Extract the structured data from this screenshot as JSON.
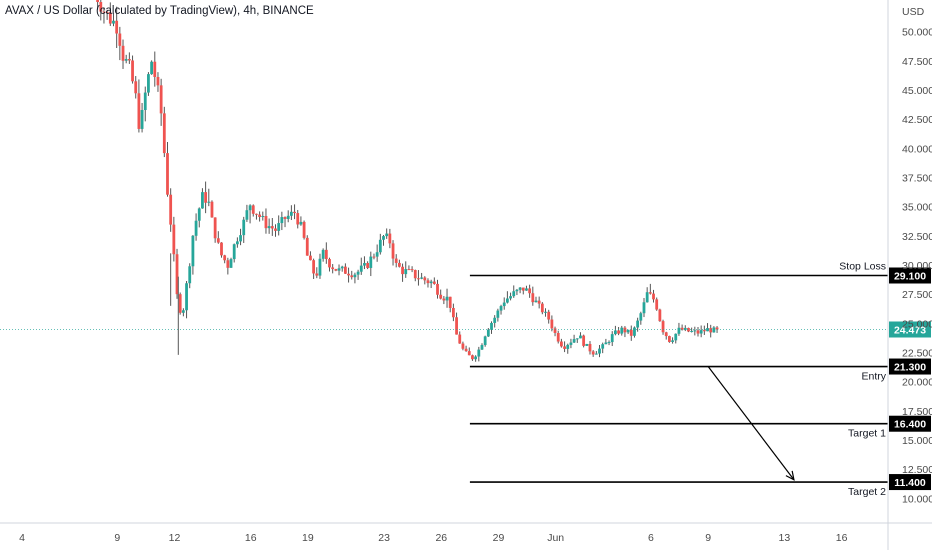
{
  "chart_data": {
    "type": "candlestick",
    "title": "AVAX / US Dollar (calculated by TradingView), 4h, BINANCE",
    "currency": "USD",
    "yaxis": {
      "ticks": [
        "50.000",
        "47.500",
        "45.000",
        "42.500",
        "40.000",
        "37.500",
        "35.000",
        "32.500",
        "30.000",
        "27.500",
        "25.000",
        "22.500",
        "20.000",
        "17.500",
        "15.000",
        "12.500",
        "10.000"
      ],
      "ylim": [
        9.0,
        54.0
      ]
    },
    "xaxis": {
      "ticks": [
        {
          "label": "4",
          "day": 4
        },
        {
          "label": "9",
          "day": 9
        },
        {
          "label": "12",
          "day": 12
        },
        {
          "label": "16",
          "day": 16
        },
        {
          "label": "19",
          "day": 19
        },
        {
          "label": "23",
          "day": 23
        },
        {
          "label": "26",
          "day": 26
        },
        {
          "label": "29",
          "day": 29
        },
        {
          "label": "Jun",
          "day": 32
        },
        {
          "label": "6",
          "day": 37
        },
        {
          "label": "9",
          "day": 40
        },
        {
          "label": "13",
          "day": 44
        },
        {
          "label": "16",
          "day": 47
        }
      ]
    },
    "close_anchors": [
      [
        7.8,
        53.5
      ],
      [
        8.4,
        51.5
      ],
      [
        9.0,
        50.5
      ],
      [
        9.3,
        48.0
      ],
      [
        9.7,
        46.5
      ],
      [
        10.0,
        44.0
      ],
      [
        10.2,
        41.5
      ],
      [
        10.5,
        45.0
      ],
      [
        10.8,
        47.5
      ],
      [
        11.0,
        46.0
      ],
      [
        11.3,
        43.0
      ],
      [
        11.6,
        37.0
      ],
      [
        11.9,
        32.0
      ],
      [
        12.1,
        27.5
      ],
      [
        12.4,
        25.5
      ],
      [
        12.7,
        29.0
      ],
      [
        13.0,
        33.0
      ],
      [
        13.4,
        35.5
      ],
      [
        13.7,
        36.0
      ],
      [
        14.0,
        33.5
      ],
      [
        14.4,
        31.0
      ],
      [
        14.8,
        30.0
      ],
      [
        15.2,
        32.0
      ],
      [
        15.6,
        33.5
      ],
      [
        16.0,
        35.5
      ],
      [
        16.3,
        34.5
      ],
      [
        16.8,
        33.5
      ],
      [
        17.3,
        33.0
      ],
      [
        17.8,
        34.0
      ],
      [
        18.3,
        34.5
      ],
      [
        18.7,
        33.0
      ],
      [
        19.0,
        30.5
      ],
      [
        19.4,
        29.0
      ],
      [
        19.8,
        31.0
      ],
      [
        20.2,
        30.0
      ],
      [
        20.6,
        29.5
      ],
      [
        21.0,
        29.5
      ],
      [
        21.5,
        29.3
      ],
      [
        22.0,
        29.8
      ],
      [
        22.5,
        31.0
      ],
      [
        23.0,
        32.5
      ],
      [
        23.3,
        32.0
      ],
      [
        23.6,
        30.0
      ],
      [
        24.0,
        29.5
      ],
      [
        24.5,
        29.2
      ],
      [
        25.0,
        28.8
      ],
      [
        25.5,
        28.5
      ],
      [
        26.0,
        27.5
      ],
      [
        26.4,
        27.0
      ],
      [
        26.8,
        24.0
      ],
      [
        27.2,
        22.5
      ],
      [
        27.6,
        22.0
      ],
      [
        28.0,
        22.8
      ],
      [
        28.4,
        24.5
      ],
      [
        28.8,
        25.5
      ],
      [
        29.3,
        27.0
      ],
      [
        29.8,
        27.5
      ],
      [
        30.3,
        28.0
      ],
      [
        30.7,
        27.5
      ],
      [
        31.1,
        26.5
      ],
      [
        31.6,
        25.5
      ],
      [
        32.0,
        24.0
      ],
      [
        32.4,
        23.0
      ],
      [
        32.8,
        23.5
      ],
      [
        33.2,
        24.0
      ],
      [
        33.6,
        23.0
      ],
      [
        34.0,
        22.5
      ],
      [
        34.5,
        23.0
      ],
      [
        35.0,
        24.0
      ],
      [
        35.5,
        24.5
      ],
      [
        36.0,
        24.0
      ],
      [
        36.4,
        25.5
      ],
      [
        36.8,
        27.5
      ],
      [
        37.2,
        27.0
      ],
      [
        37.6,
        24.5
      ],
      [
        38.0,
        23.5
      ],
      [
        38.5,
        24.5
      ],
      [
        39.0,
        24.3
      ],
      [
        39.5,
        24.2
      ],
      [
        40.0,
        24.5
      ],
      [
        40.5,
        24.3
      ]
    ],
    "current_price": {
      "value": 24.473,
      "label": "24.473",
      "color": "#26a69a"
    },
    "levels": [
      {
        "name": "Stop Loss",
        "value": 29.1,
        "label": "29.100",
        "from_day": 27.5
      },
      {
        "name": "Entry",
        "value": 21.3,
        "label": "21.300",
        "from_day": 27.5
      },
      {
        "name": "Target 1",
        "value": 16.4,
        "label": "16.400",
        "from_day": 27.5
      },
      {
        "name": "Target 2",
        "value": 11.4,
        "label": "11.400",
        "from_day": 27.5
      }
    ],
    "arrow": {
      "from": {
        "day": 40.0,
        "value": 21.3
      },
      "to": {
        "day": 44.5,
        "value": 11.6
      }
    },
    "colors": {
      "up": "#26a69a",
      "down": "#ef5350",
      "wick": "#4a4a4a",
      "grid": "#f0f3fa",
      "axis": "#d1d4dc"
    }
  }
}
